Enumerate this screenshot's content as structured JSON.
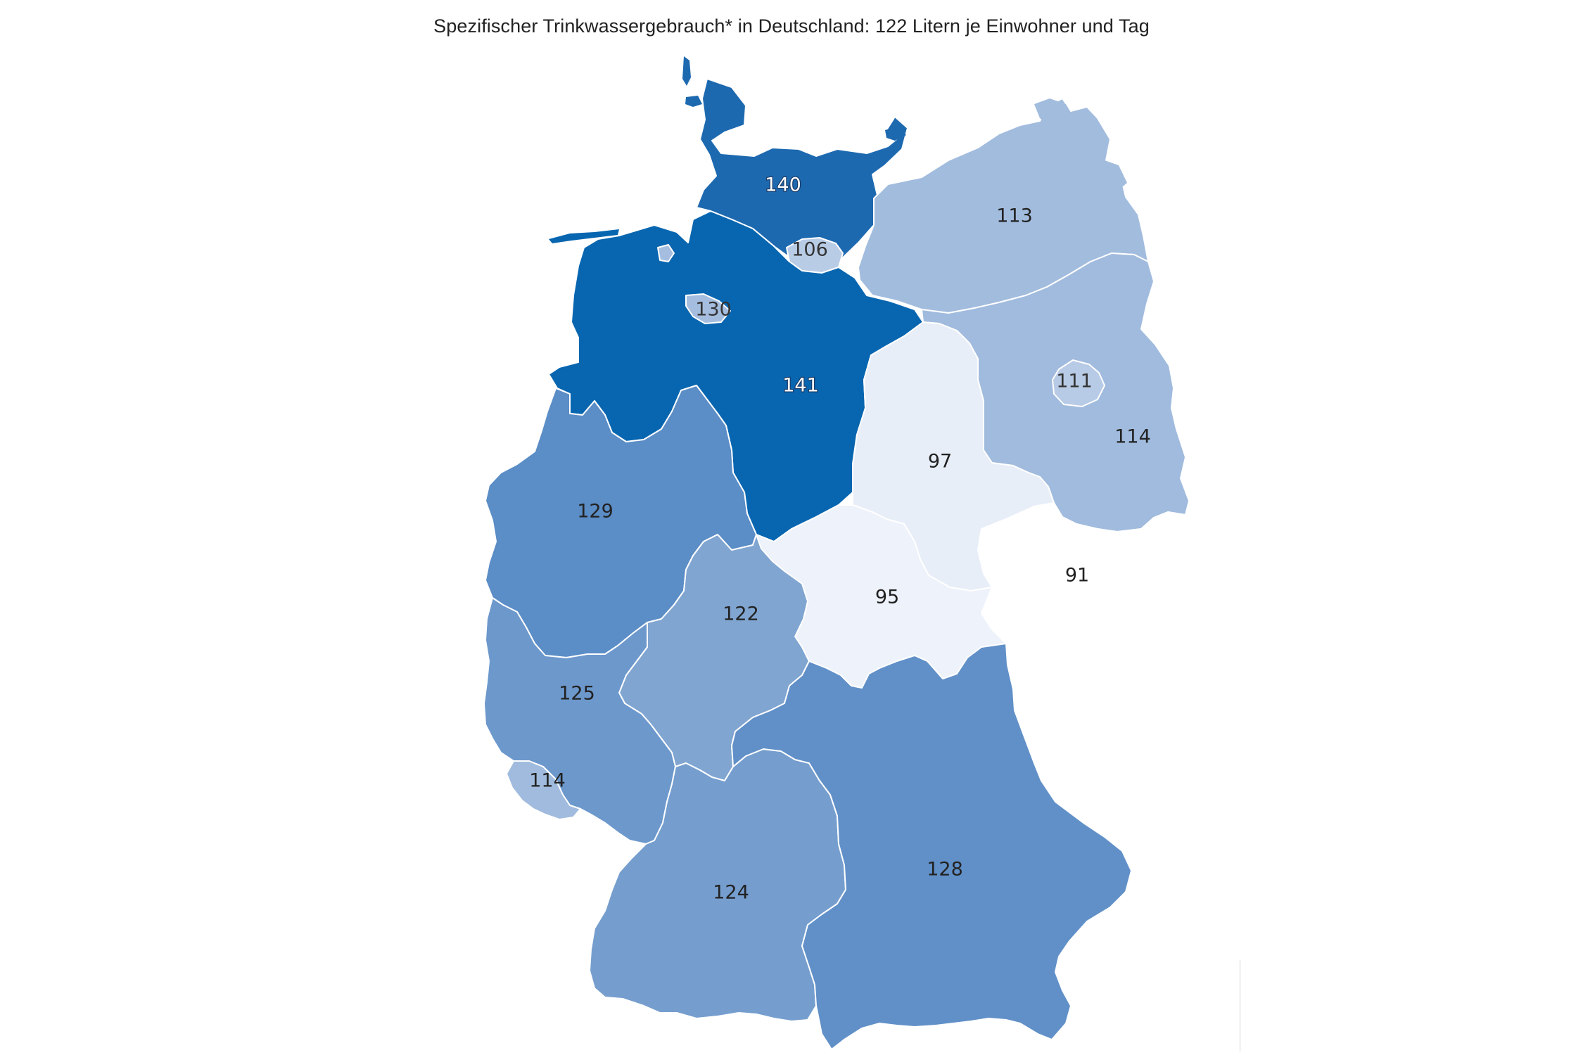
{
  "map": {
    "title": "Spezifischer Trinkwassergebrauch* in Deutschland: 122 Litern je Einwohner und Tag",
    "regions": [
      {
        "name": "Schleswig-Holstein",
        "value": "140",
        "color": "#1d69b0"
      },
      {
        "name": "Hamburg",
        "value": "106",
        "color": "#b9cce6"
      },
      {
        "name": "Mecklenburg-Vorpommern",
        "value": "113",
        "color": "#a2bcde"
      },
      {
        "name": "Bremen",
        "value": "130",
        "color": "#a5bedf"
      },
      {
        "name": "Niedersachsen",
        "value": "141",
        "color": "#0866b0"
      },
      {
        "name": "Berlin",
        "value": "111",
        "color": "#b8cbe6"
      },
      {
        "name": "Brandenburg",
        "value": "114",
        "color": "#a0bbdd"
      },
      {
        "name": "Sachsen-Anhalt",
        "value": "97",
        "color": "#e8eef8"
      },
      {
        "name": "Nordrhein-Westfalen",
        "value": "129",
        "color": "#5b8dc6"
      },
      {
        "name": "Sachsen",
        "value": "91",
        "color": "#ffffff"
      },
      {
        "name": "Thüringen",
        "value": "95",
        "color": "#eef2fa"
      },
      {
        "name": "Hessen",
        "value": "122",
        "color": "#80a5d1"
      },
      {
        "name": "Rheinland-Pfalz",
        "value": "125",
        "color": "#6c98cc"
      },
      {
        "name": "Saarland",
        "value": "114",
        "color": "#a0bbdd"
      },
      {
        "name": "Baden-Württemberg",
        "value": "124",
        "color": "#759ece"
      },
      {
        "name": "Bayern",
        "value": "128",
        "color": "#6190c8"
      }
    ]
  }
}
